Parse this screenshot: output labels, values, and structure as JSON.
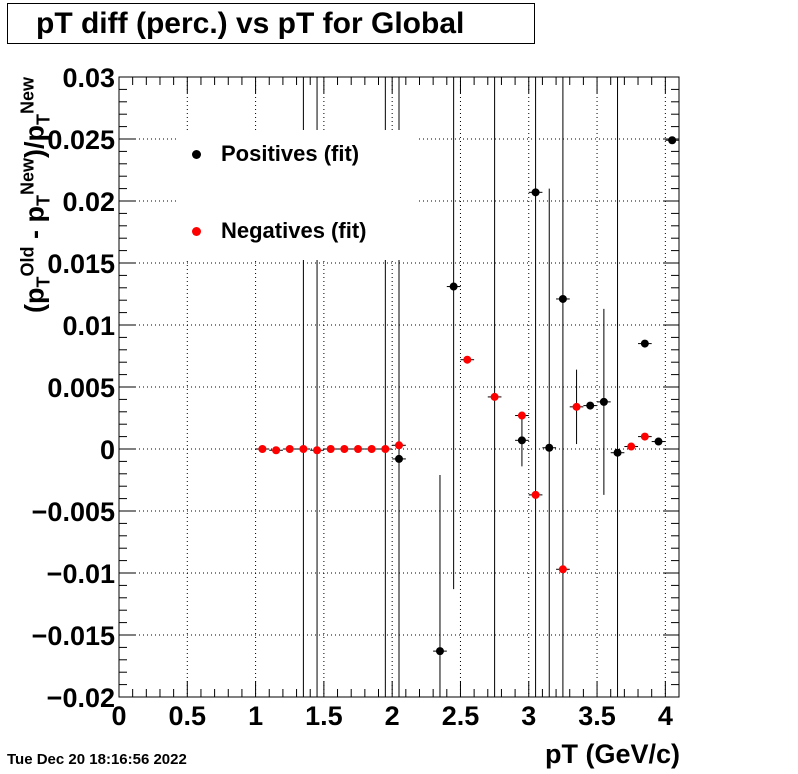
{
  "title": "pT diff (perc.) vs pT for Global",
  "timestamp": "Tue Dec 20 18:16:56 2022",
  "chart_data": {
    "type": "scatter",
    "title": "pT diff (perc.) vs pT for Global",
    "xlabel": "pT (GeV/c)",
    "ylabel": {
      "open": "(p",
      "sub1": "T",
      "sup1": "Old",
      "mid": " - p",
      "sub2": "T",
      "sup2": "New",
      "close": ")/p",
      "sub3": "T",
      "sup3": "New"
    },
    "xlim": [
      0,
      4.1
    ],
    "ylim": [
      -0.02,
      0.03
    ],
    "xticks": [
      "0",
      "0.5",
      "1",
      "1.5",
      "2",
      "2.5",
      "3",
      "3.5",
      "4"
    ],
    "yticks": [
      "−0.02",
      "−0.015",
      "−0.01",
      "−0.005",
      "0",
      "0.005",
      "0.01",
      "0.015",
      "0.02",
      "0.025",
      "0.03"
    ],
    "grid": true,
    "legend_position": "top-left",
    "series": [
      {
        "name": "Positives (fit)",
        "color": "#000000",
        "points": [
          {
            "x": 2.05,
            "y": -0.0008,
            "xerr": 0.05,
            "yerr": null
          },
          {
            "x": 2.35,
            "y": -0.0163,
            "xerr": 0.05,
            "yerr": 0.0142
          },
          {
            "x": 2.45,
            "y": 0.0131,
            "xerr": 0.05,
            "yerr": 0.0244
          },
          {
            "x": 2.95,
            "y": 0.0007,
            "xerr": 0.05,
            "yerr": 0.0021
          },
          {
            "x": 3.05,
            "y": 0.0207,
            "xerr": 0.05,
            "yerr": null
          },
          {
            "x": 3.15,
            "y": 0.0001,
            "xerr": 0.05,
            "yerr": 0.0209
          },
          {
            "x": 3.25,
            "y": 0.0121,
            "xerr": 0.05,
            "yerr": null
          },
          {
            "x": 3.45,
            "y": 0.0035,
            "xerr": 0.05,
            "yerr": null
          },
          {
            "x": 3.55,
            "y": 0.0038,
            "xerr": 0.05,
            "yerr": 0.0075
          },
          {
            "x": 3.65,
            "y": -0.0003,
            "xerr": 0.05,
            "yerr": null
          },
          {
            "x": 3.85,
            "y": 0.0085,
            "xerr": 0.05,
            "yerr": null
          },
          {
            "x": 3.95,
            "y": 0.0006,
            "xerr": 0.05,
            "yerr": null
          },
          {
            "x": 4.05,
            "y": 0.0249,
            "xerr": 0.05,
            "yerr": null
          }
        ]
      },
      {
        "name": "Negatives (fit)",
        "color": "#ff0000",
        "points": [
          {
            "x": 1.05,
            "y": 0.0,
            "xerr": 0.05,
            "yerr": null
          },
          {
            "x": 1.15,
            "y": -0.0001,
            "xerr": 0.05,
            "yerr": null
          },
          {
            "x": 1.25,
            "y": 0.0,
            "xerr": 0.05,
            "yerr": null
          },
          {
            "x": 1.35,
            "y": 0.0,
            "xerr": 0.05,
            "yerr": null
          },
          {
            "x": 1.45,
            "y": -0.0001,
            "xerr": 0.05,
            "yerr": null
          },
          {
            "x": 1.55,
            "y": 0.0,
            "xerr": 0.05,
            "yerr": null
          },
          {
            "x": 1.65,
            "y": 0.0,
            "xerr": 0.05,
            "yerr": null
          },
          {
            "x": 1.75,
            "y": 0.0,
            "xerr": 0.05,
            "yerr": null
          },
          {
            "x": 1.85,
            "y": 0.0,
            "xerr": 0.05,
            "yerr": null
          },
          {
            "x": 1.95,
            "y": 0.0,
            "xerr": 0.05,
            "yerr": null
          },
          {
            "x": 2.05,
            "y": 0.0003,
            "xerr": 0.05,
            "yerr": null
          },
          {
            "x": 2.55,
            "y": 0.0072,
            "xerr": 0.05,
            "yerr": null
          },
          {
            "x": 2.75,
            "y": 0.0042,
            "xerr": 0.05,
            "yerr": null
          },
          {
            "x": 2.95,
            "y": 0.0027,
            "xerr": 0.05,
            "yerr": null
          },
          {
            "x": 3.05,
            "y": -0.0037,
            "xerr": 0.05,
            "yerr": null
          },
          {
            "x": 3.25,
            "y": -0.0097,
            "xerr": 0.05,
            "yerr": null
          },
          {
            "x": 3.35,
            "y": 0.0034,
            "xerr": 0.05,
            "yerr": 0.003
          },
          {
            "x": 3.75,
            "y": 0.0002,
            "xerr": 0.05,
            "yerr": null
          },
          {
            "x": 3.85,
            "y": 0.001,
            "xerr": 0.05,
            "yerr": null
          }
        ]
      }
    ],
    "full_range_errors": [
      {
        "x": 1.35
      },
      {
        "x": 1.45
      },
      {
        "x": 1.95
      },
      {
        "x": 2.05
      },
      {
        "x": 2.75
      },
      {
        "x": 3.05
      },
      {
        "x": 3.25
      },
      {
        "x": 3.65
      }
    ]
  }
}
